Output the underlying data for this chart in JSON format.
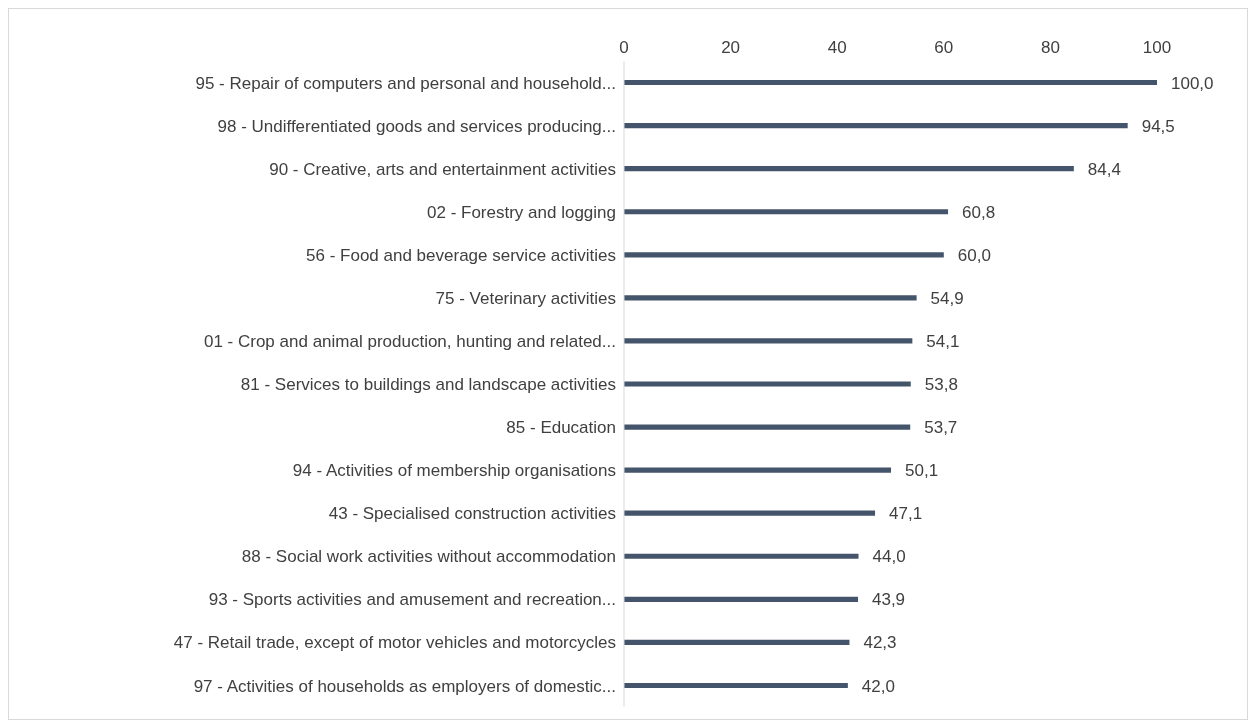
{
  "chart_data": {
    "type": "bar",
    "orientation": "horizontal",
    "categories": [
      "95 - Repair of computers and personal and household...",
      "98 - Undifferentiated goods and services producing...",
      "90 - Creative, arts and entertainment activities",
      "02 - Forestry and logging",
      "56 - Food and beverage service activities",
      "75 - Veterinary activities",
      "01 - Crop and animal production, hunting and related...",
      "81 - Services to buildings and landscape activities",
      "85 - Education",
      "94 - Activities of membership organisations",
      "43 - Specialised construction activities",
      "88 - Social work activities without accommodation",
      "93 - Sports activities and amusement and recreation...",
      "47 - Retail trade, except of motor vehicles and motorcycles",
      "97 - Activities of households as employers of domestic..."
    ],
    "values": [
      100.0,
      94.5,
      84.4,
      60.8,
      60.0,
      54.9,
      54.1,
      53.8,
      53.7,
      50.1,
      47.1,
      44.0,
      43.9,
      42.3,
      42.0
    ],
    "value_labels": [
      "100,0",
      "94,5",
      "84,4",
      "60,8",
      "60,0",
      "54,9",
      "54,1",
      "53,8",
      "53,7",
      "50,1",
      "47,1",
      "44,0",
      "43,9",
      "42,3",
      "42,0"
    ],
    "color": "#44546a",
    "xlim": [
      0,
      100
    ],
    "xticks": [
      0,
      20,
      40,
      60,
      80,
      100
    ]
  }
}
